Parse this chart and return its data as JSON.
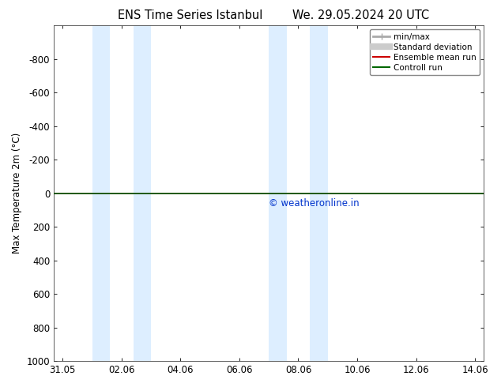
{
  "title_left": "ENS Time Series Istanbul",
  "title_right": "We. 29.05.2024 20 UTC",
  "ylabel": "Max Temperature 2m (°C)",
  "ylim_top": -1000,
  "ylim_bottom": 1000,
  "yticks": [
    -800,
    -600,
    -400,
    -200,
    0,
    200,
    400,
    600,
    800,
    1000
  ],
  "xtick_labels": [
    "31.05",
    "02.06",
    "04.06",
    "06.06",
    "08.06",
    "10.06",
    "12.06",
    "14.06"
  ],
  "xtick_positions": [
    0,
    2,
    4,
    6,
    8,
    10,
    12,
    14
  ],
  "xlim": [
    -0.3,
    14.3
  ],
  "shaded_regions": [
    [
      1.0,
      1.6
    ],
    [
      2.4,
      3.0
    ],
    [
      7.0,
      7.6
    ],
    [
      8.4,
      9.0
    ]
  ],
  "shade_color": "#ddeeff",
  "green_line_y": 0,
  "green_line_color": "#006600",
  "red_line_color": "#cc0000",
  "copyright_text": "© weatheronline.in",
  "copyright_color": "#0033cc",
  "legend_items": [
    {
      "label": "min/max",
      "color": "#aaaaaa",
      "lw": 2,
      "style": "errorbar"
    },
    {
      "label": "Standard deviation",
      "color": "#cccccc",
      "lw": 6
    },
    {
      "label": "Ensemble mean run",
      "color": "#cc0000",
      "lw": 1.5
    },
    {
      "label": "Controll run",
      "color": "#006600",
      "lw": 1.5
    }
  ],
  "bg_color": "#ffffff",
  "plot_bg_color": "#ffffff",
  "figsize": [
    6.34,
    4.9
  ],
  "dpi": 100
}
